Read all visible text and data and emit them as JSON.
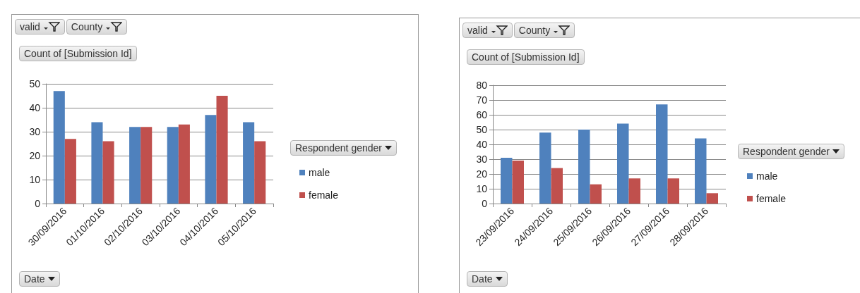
{
  "chart_data": [
    {
      "type": "bar",
      "ylabel": "Count of [Submission Id]",
      "xlabel": "Date",
      "legend_title": "Respondent gender",
      "annotations": [
        "valid",
        "County"
      ],
      "categories": [
        "30/09/2016",
        "01/10/2016",
        "02/10/2016",
        "03/10/2016",
        "04/10/2016",
        "05/10/2016"
      ],
      "series": [
        {
          "name": "male",
          "color": "#4f81bd",
          "values": [
            47,
            34,
            32,
            32,
            37,
            34
          ]
        },
        {
          "name": "female",
          "color": "#c0504d",
          "values": [
            27,
            26,
            32,
            33,
            45,
            26
          ]
        }
      ],
      "ylim": [
        0,
        50
      ],
      "yticks": [
        0,
        10,
        20,
        30,
        40,
        50
      ],
      "grid": "y",
      "legend": "right"
    },
    {
      "type": "bar",
      "ylabel": "Count of [Submission Id]",
      "xlabel": "Date",
      "legend_title": "Respondent gender",
      "annotations": [
        "valid",
        "County"
      ],
      "categories": [
        "23/09/2016",
        "24/09/2016",
        "25/09/2016",
        "26/09/2016",
        "27/09/2016",
        "28/09/2016"
      ],
      "series": [
        {
          "name": "male",
          "color": "#4f81bd",
          "values": [
            31,
            48,
            50,
            54,
            67,
            44
          ]
        },
        {
          "name": "female",
          "color": "#c0504d",
          "values": [
            29,
            24,
            13,
            17,
            17,
            7
          ]
        }
      ],
      "ylim": [
        0,
        80
      ],
      "yticks": [
        0,
        10,
        20,
        30,
        40,
        50,
        60,
        70,
        80
      ],
      "grid": "y",
      "legend": "right"
    }
  ]
}
